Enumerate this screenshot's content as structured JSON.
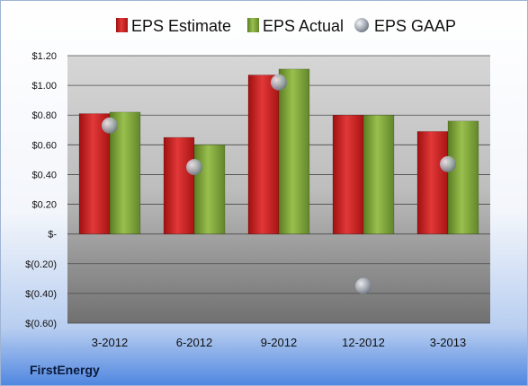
{
  "chart_data": {
    "type": "bar",
    "categories": [
      "3-2012",
      "6-2012",
      "9-2012",
      "12-2012",
      "3-2013"
    ],
    "series": [
      {
        "name": "EPS Estimate",
        "kind": "bar",
        "color": "#cc1f1f",
        "values": [
          0.81,
          0.65,
          1.07,
          0.8,
          0.69
        ]
      },
      {
        "name": "EPS Actual",
        "kind": "bar",
        "color": "#7ea33a",
        "values": [
          0.82,
          0.6,
          1.11,
          0.8,
          0.76
        ]
      },
      {
        "name": "EPS GAAP",
        "kind": "scatter",
        "color": "#9aa4b0",
        "values": [
          0.73,
          0.45,
          1.02,
          -0.35,
          0.47
        ]
      }
    ],
    "yticks": [
      {
        "value": 1.2,
        "label": "$1.20"
      },
      {
        "value": 1.0,
        "label": "$1.00"
      },
      {
        "value": 0.8,
        "label": "$0.80"
      },
      {
        "value": 0.6,
        "label": "$0.60"
      },
      {
        "value": 0.4,
        "label": "$0.40"
      },
      {
        "value": 0.2,
        "label": "$0.20"
      },
      {
        "value": 0.0,
        "label": "$-"
      },
      {
        "value": -0.2,
        "label": "$(0.20)"
      },
      {
        "value": -0.4,
        "label": "$(0.40)"
      },
      {
        "value": -0.6,
        "label": "$(0.60)"
      }
    ],
    "ylim": [
      -0.6,
      1.2
    ],
    "grid": true,
    "legend": "top",
    "title": "",
    "xlabel": "",
    "ylabel": ""
  },
  "brand": "FirstEnergy"
}
